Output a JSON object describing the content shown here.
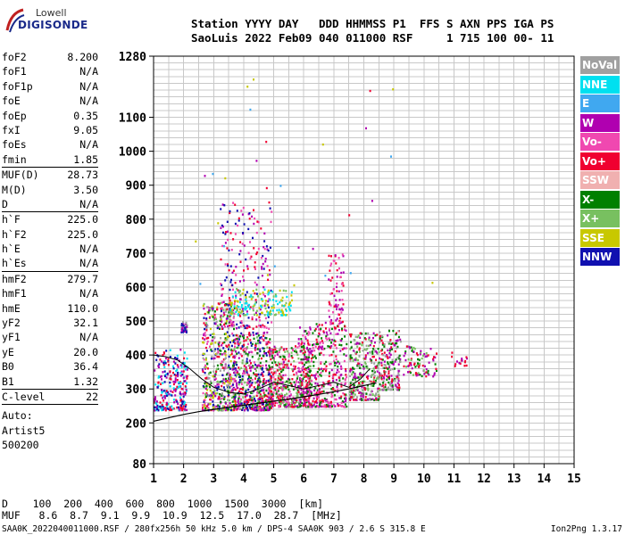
{
  "header": {
    "logo_line1": "Lowell",
    "logo_line2": "DIGISONDE",
    "row1": "Station YYYY DAY   DDD HHMMSS P1  FFS S AXN PPS IGA PS",
    "row2": "SaoLuis 2022 Feb09 040 011000 RSF     1 715 100 00- 11"
  },
  "params": {
    "group1": [
      {
        "k": "foF2",
        "v": "8.200"
      },
      {
        "k": "foF1",
        "v": "N/A"
      },
      {
        "k": "foF1p",
        "v": "N/A"
      },
      {
        "k": "foE",
        "v": "N/A"
      },
      {
        "k": "foEp",
        "v": "0.35"
      },
      {
        "k": "fxI",
        "v": "9.05"
      },
      {
        "k": "foEs",
        "v": "N/A"
      },
      {
        "k": "fmin",
        "v": "1.85"
      }
    ],
    "group2": [
      {
        "k": "MUF(D)",
        "v": "28.73"
      },
      {
        "k": "M(D)",
        "v": "3.50"
      },
      {
        "k": "D",
        "v": "N/A"
      }
    ],
    "group3": [
      {
        "k": "h`F",
        "v": "225.0"
      },
      {
        "k": "h`F2",
        "v": "225.0"
      },
      {
        "k": "h`E",
        "v": "N/A"
      },
      {
        "k": "h`Es",
        "v": "N/A"
      }
    ],
    "group4": [
      {
        "k": "hmF2",
        "v": "279.7"
      },
      {
        "k": "hmF1",
        "v": "N/A"
      },
      {
        "k": "hmE",
        "v": "110.0"
      },
      {
        "k": "yF2",
        "v": "32.1"
      },
      {
        "k": "yF1",
        "v": "N/A"
      },
      {
        "k": "yE",
        "v": "20.0"
      },
      {
        "k": "B0",
        "v": "36.4"
      },
      {
        "k": "B1",
        "v": "1.32"
      }
    ],
    "group5": [
      {
        "k": "C-level",
        "v": "22"
      }
    ],
    "auto_lines": [
      "Auto:",
      "Artist5",
      "500200"
    ]
  },
  "legend": [
    {
      "label": "NoVal",
      "color": "#a0a0a0"
    },
    {
      "label": "NNE",
      "color": "#00e0f0"
    },
    {
      "label": "E",
      "color": "#40a8f0"
    },
    {
      "label": "W",
      "color": "#b000b0"
    },
    {
      "label": "Vo-",
      "color": "#f048b0"
    },
    {
      "label": "Vo+",
      "color": "#f00030"
    },
    {
      "label": "SSW",
      "color": "#f0b0b0"
    },
    {
      "label": "X-",
      "color": "#008000"
    },
    {
      "label": "X+",
      "color": "#78c060"
    },
    {
      "label": "SSE",
      "color": "#c8c800"
    },
    {
      "label": "NNW",
      "color": "#1010b0"
    }
  ],
  "chart_data": {
    "type": "scatter",
    "title": "",
    "xlabel": "",
    "ylabel": "",
    "xlim": [
      1,
      15
    ],
    "ylim": [
      80,
      1280
    ],
    "x_ticks": [
      1,
      2,
      3,
      4,
      5,
      6,
      7,
      8,
      9,
      10,
      11,
      12,
      13,
      14,
      15
    ],
    "y_ticks": [
      80,
      200,
      300,
      400,
      500,
      600,
      700,
      800,
      900,
      1000,
      1100,
      1280
    ],
    "grid": true,
    "legend_position": "right",
    "trace": {
      "name": "",
      "x": [
        1.0,
        1.5,
        2.0,
        2.5,
        3.0,
        3.5,
        4.0,
        4.5,
        5.0,
        5.5,
        6.0,
        6.5,
        7.0,
        7.5,
        8.0,
        8.4
      ],
      "y": [
        205,
        215,
        225,
        233,
        240,
        246,
        252,
        258,
        264,
        270,
        277,
        284,
        292,
        300,
        310,
        318
      ]
    },
    "profile": {
      "name": "",
      "x": [
        1.0,
        1.4,
        1.8,
        2.2,
        2.6,
        3.0,
        3.5,
        4.0,
        4.5,
        5.0,
        5.5,
        6.0,
        6.5,
        7.0,
        7.5,
        7.9,
        8.2
      ],
      "y": [
        400,
        395,
        385,
        360,
        330,
        305,
        290,
        285,
        300,
        320,
        310,
        300,
        310,
        320,
        305,
        330,
        360
      ]
    },
    "clusters": [
      {
        "x": [
          1.0,
          2.1
        ],
        "y": [
          240,
          420
        ],
        "density": 260,
        "colors": [
          "#1010b0",
          "#b000b0",
          "#f00030",
          "#00e0f0"
        ]
      },
      {
        "x": [
          1.9,
          2.1
        ],
        "y": [
          470,
          500
        ],
        "density": 40,
        "colors": [
          "#1010b0",
          "#b000b0",
          "#a0a0a0"
        ]
      },
      {
        "x": [
          2.6,
          3.7
        ],
        "y": [
          240,
          560
        ],
        "density": 520,
        "colors": [
          "#1010b0",
          "#b000b0",
          "#f00030",
          "#f048b0",
          "#008000",
          "#78c060",
          "#c8c800",
          "#a0a0a0"
        ]
      },
      {
        "x": [
          3.6,
          4.9
        ],
        "y": [
          240,
          470
        ],
        "density": 560,
        "colors": [
          "#f00030",
          "#b000b0",
          "#f048b0",
          "#008000",
          "#78c060",
          "#1010b0"
        ]
      },
      {
        "x": [
          3.2,
          4.9
        ],
        "y": [
          480,
          860
        ],
        "density": 220,
        "colors": [
          "#b000b0",
          "#f00030",
          "#1010b0",
          "#f048b0"
        ]
      },
      {
        "x": [
          3.5,
          5.6
        ],
        "y": [
          520,
          600
        ],
        "density": 160,
        "colors": [
          "#c8c800",
          "#78c060",
          "#00e0f0"
        ]
      },
      {
        "x": [
          4.8,
          6.2
        ],
        "y": [
          250,
          430
        ],
        "density": 460,
        "colors": [
          "#f00030",
          "#f048b0",
          "#b000b0",
          "#008000",
          "#78c060"
        ]
      },
      {
        "x": [
          5.8,
          7.4
        ],
        "y": [
          250,
          500
        ],
        "density": 460,
        "colors": [
          "#f00030",
          "#f048b0",
          "#b000b0",
          "#008000"
        ]
      },
      {
        "x": [
          6.8,
          7.3
        ],
        "y": [
          500,
          700
        ],
        "density": 70,
        "colors": [
          "#f00030",
          "#b000b0",
          "#f048b0"
        ]
      },
      {
        "x": [
          7.5,
          8.5
        ],
        "y": [
          270,
          470
        ],
        "density": 320,
        "colors": [
          "#a0a0a0",
          "#f00030",
          "#b000b0",
          "#008000",
          "#78c060"
        ]
      },
      {
        "x": [
          8.5,
          9.2
        ],
        "y": [
          300,
          480
        ],
        "density": 180,
        "colors": [
          "#f00030",
          "#b000b0",
          "#008000",
          "#a0a0a0"
        ]
      },
      {
        "x": [
          9.3,
          10.4
        ],
        "y": [
          340,
          430
        ],
        "density": 90,
        "colors": [
          "#f00030",
          "#b000b0",
          "#008000",
          "#78c060"
        ]
      },
      {
        "x": [
          10.9,
          11.5
        ],
        "y": [
          370,
          420
        ],
        "density": 16,
        "colors": [
          "#f00030",
          "#b000b0"
        ]
      },
      {
        "x": [
          2.0,
          11.2
        ],
        "y": [
          600,
          1220
        ],
        "density": 30,
        "colors": [
          "#b000b0",
          "#f00030",
          "#c8c800",
          "#40a8f0"
        ]
      }
    ]
  },
  "footer": {
    "row1": "D    100  200  400  600  800  1000  1500  3000  [km]",
    "row2": "MUF   8.6  8.7  9.1  9.9  10.9  12.5  17.0  28.7  [MHz]",
    "file": "SAA0K_2022040011000.RSF / 280fx256h 50 kHz 5.0 km / DPS-4 SAA0K 903 / 2.6 S 315.8 E",
    "version": "Ion2Png 1.3.17"
  }
}
